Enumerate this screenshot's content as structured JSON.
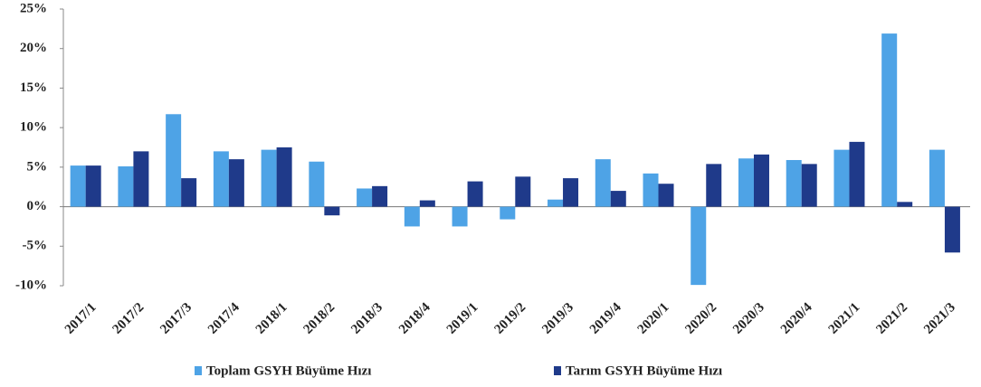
{
  "chart_data": {
    "type": "bar",
    "categories": [
      "2017/1",
      "2017/2",
      "2017/3",
      "2017/4",
      "2018/1",
      "2018/2",
      "2018/3",
      "2018/4",
      "2019/1",
      "2019/2",
      "2019/3",
      "2019/4",
      "2020/1",
      "2020/2",
      "2020/3",
      "2020/4",
      "2021/1",
      "2021/2",
      "2021/3"
    ],
    "series": [
      {
        "name": "Toplam GSYH Büyüme Hızı",
        "color": "#4ea3e6",
        "values": [
          5.2,
          5.1,
          11.7,
          7.0,
          7.2,
          5.7,
          2.3,
          -2.5,
          -2.5,
          -1.6,
          0.9,
          6.0,
          4.2,
          -9.9,
          6.1,
          5.9,
          7.2,
          21.9,
          7.2
        ]
      },
      {
        "name": "Tarım GSYH Büyüme Hızı",
        "color": "#1f3a8a",
        "values": [
          5.2,
          7.0,
          3.6,
          6.0,
          7.5,
          -1.1,
          2.6,
          0.8,
          3.2,
          3.8,
          3.6,
          2.0,
          2.9,
          5.4,
          6.6,
          5.4,
          8.2,
          0.6,
          -5.8
        ]
      }
    ],
    "ylim": [
      -10,
      25
    ],
    "yticks": [
      {
        "value": -10,
        "label": "-10%"
      },
      {
        "value": -5,
        "label": "-5%"
      },
      {
        "value": 0,
        "label": "0%"
      },
      {
        "value": 5,
        "label": "5%"
      },
      {
        "value": 10,
        "label": "10%"
      },
      {
        "value": 15,
        "label": "15%"
      },
      {
        "value": 20,
        "label": "20%"
      },
      {
        "value": 25,
        "label": "25%"
      }
    ],
    "grid": false
  }
}
